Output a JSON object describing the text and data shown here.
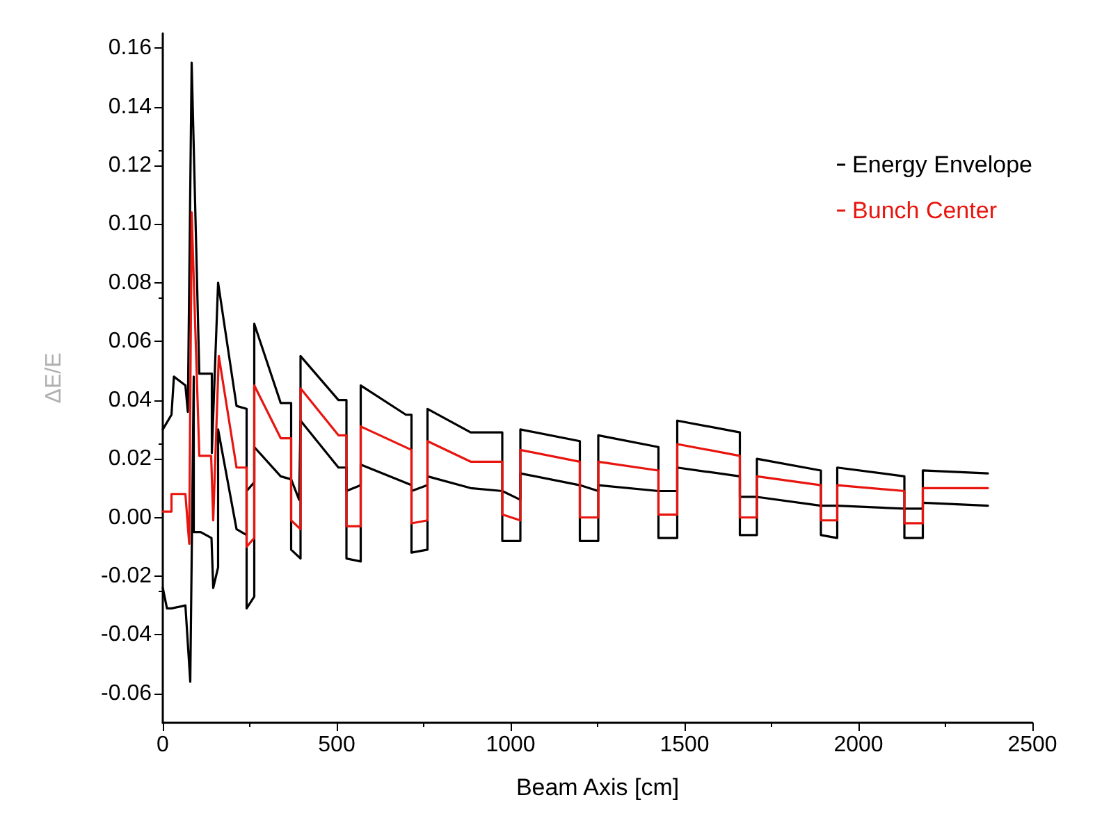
{
  "chart_data": {
    "type": "line",
    "xlabel": "Beam Axis [cm]",
    "ylabel": "ΔE/E",
    "xlim": [
      0,
      2500
    ],
    "xticks": [
      0,
      500,
      1000,
      1500,
      2000,
      2500
    ],
    "ylim": [
      -0.07,
      0.165
    ],
    "yticks": [
      -0.06,
      -0.04,
      -0.02,
      {
        "value": 0,
        "label": "0.00"
      },
      0.02,
      0.04,
      0.06,
      0.08,
      {
        "value": 0.1,
        "label": "0.10"
      },
      0.12,
      0.14,
      0.16
    ],
    "grid": false,
    "legend": "top right",
    "marker": "none",
    "line_style": "solid",
    "series": [
      {
        "name": "Energy Envelope",
        "color": "#000000",
        "x": [
          0,
          25,
          32,
          65,
          72,
          83,
          105,
          141,
          141,
          159,
          212,
          241,
          241,
          263,
          263,
          339,
          369,
          369,
          396,
          396,
          505,
          528,
          528,
          569,
          569,
          699,
          715,
          715,
          761,
          761,
          885,
          976,
          976,
          1028,
          1028,
          1199,
          1199,
          1252,
          1252,
          1425,
          1425,
          1479,
          1479,
          1659,
          1659,
          1708,
          1708,
          1892,
          1892,
          1939,
          1939,
          2132,
          2132,
          2185,
          2185,
          2372
        ],
        "values": [
          0.03,
          0.035,
          0.048,
          0.045,
          0.036,
          0.155,
          0.049,
          0.049,
          0.022,
          0.08,
          0.038,
          0.037,
          -0.031,
          -0.027,
          0.066,
          0.039,
          0.039,
          -0.011,
          -0.014,
          0.055,
          0.04,
          0.04,
          -0.014,
          -0.015,
          0.045,
          0.035,
          0.035,
          -0.012,
          -0.011,
          0.037,
          0.029,
          0.029,
          -0.008,
          -0.008,
          0.03,
          0.026,
          -0.008,
          -0.008,
          0.028,
          0.024,
          -0.007,
          -0.007,
          0.033,
          0.029,
          -0.006,
          -0.006,
          0.02,
          0.016,
          -0.006,
          -0.007,
          0.017,
          0.014,
          -0.007,
          -0.007,
          0.016,
          0.015
        ]
      },
      {
        "color": "#000000",
        "x": [
          0,
          12,
          25,
          65,
          79,
          89,
          89,
          109,
          140,
          145,
          159,
          159,
          212,
          241,
          241,
          263,
          263,
          339,
          369,
          392,
          396,
          505,
          528,
          528,
          569,
          569,
          715,
          715,
          761,
          761,
          885,
          976,
          1028,
          1028,
          1199,
          1252,
          1252,
          1425,
          1479,
          1479,
          1659,
          1659,
          1708,
          1892,
          1939,
          2132,
          2185,
          2185,
          2372
        ],
        "values": [
          -0.024,
          -0.031,
          -0.031,
          -0.03,
          -0.056,
          0.048,
          -0.005,
          -0.005,
          -0.007,
          -0.024,
          -0.017,
          0.03,
          -0.004,
          -0.006,
          0.009,
          0.012,
          0.024,
          0.014,
          0.013,
          0.006,
          0.033,
          0.017,
          0.017,
          0.009,
          0.011,
          0.018,
          0.011,
          0.009,
          0.011,
          0.014,
          0.01,
          0.009,
          0.006,
          0.015,
          0.011,
          0.009,
          0.011,
          0.009,
          0.009,
          0.017,
          0.014,
          0.007,
          0.007,
          0.004,
          0.004,
          0.003,
          0.003,
          0.005,
          0.004
        ]
      },
      {
        "name": "Bunch Center",
        "color": "#e8150f",
        "x": [
          0,
          25,
          25,
          65,
          76,
          83,
          105,
          139,
          145,
          161,
          212,
          241,
          241,
          263,
          263,
          339,
          369,
          369,
          396,
          396,
          505,
          528,
          528,
          569,
          569,
          715,
          715,
          761,
          761,
          885,
          976,
          976,
          1028,
          1028,
          1199,
          1199,
          1252,
          1252,
          1425,
          1425,
          1479,
          1479,
          1659,
          1659,
          1708,
          1708,
          1892,
          1892,
          1939,
          1939,
          2132,
          2132,
          2185,
          2185,
          2372
        ],
        "values": [
          0.002,
          0.002,
          0.008,
          0.008,
          -0.009,
          0.104,
          0.021,
          0.021,
          -0.001,
          0.055,
          0.017,
          0.017,
          -0.01,
          -0.007,
          0.045,
          0.027,
          0.027,
          -0.001,
          -0.004,
          0.044,
          0.028,
          0.028,
          -0.003,
          -0.003,
          0.031,
          0.023,
          -0.002,
          -0.001,
          0.026,
          0.019,
          0.019,
          0.001,
          -0.001,
          0.023,
          0.019,
          0.0,
          0.0,
          0.019,
          0.016,
          0.001,
          0.001,
          0.025,
          0.021,
          0.0,
          0.0,
          0.014,
          0.011,
          -0.001,
          -0.001,
          0.011,
          0.009,
          -0.002,
          -0.002,
          0.01,
          0.01
        ]
      }
    ]
  }
}
